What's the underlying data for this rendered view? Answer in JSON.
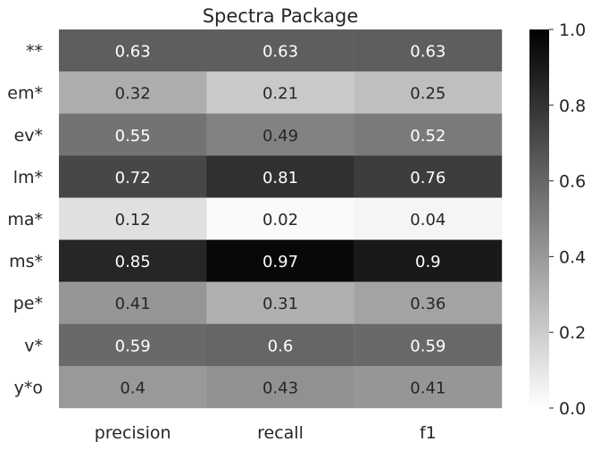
{
  "chart_data": {
    "type": "heatmap",
    "title": "Spectra Package",
    "xlabel": "",
    "ylabel": "",
    "columns": [
      "precision",
      "recall",
      "f1"
    ],
    "rows": [
      "**",
      "em*",
      "ev*",
      "lm*",
      "ma*",
      "ms*",
      "pe*",
      "v*",
      "y*o"
    ],
    "values": [
      [
        0.63,
        0.63,
        0.63
      ],
      [
        0.32,
        0.21,
        0.25
      ],
      [
        0.55,
        0.49,
        0.52
      ],
      [
        0.72,
        0.81,
        0.76
      ],
      [
        0.12,
        0.02,
        0.04
      ],
      [
        0.85,
        0.97,
        0.9
      ],
      [
        0.41,
        0.31,
        0.36
      ],
      [
        0.59,
        0.6,
        0.59
      ],
      [
        0.4,
        0.43,
        0.41
      ]
    ],
    "value_labels": [
      [
        "0.63",
        "0.63",
        "0.63"
      ],
      [
        "0.32",
        "0.21",
        "0.25"
      ],
      [
        "0.55",
        "0.49",
        "0.52"
      ],
      [
        "0.72",
        "0.81",
        "0.76"
      ],
      [
        "0.12",
        "0.02",
        "0.04"
      ],
      [
        "0.85",
        "0.97",
        "0.9"
      ],
      [
        "0.41",
        "0.31",
        "0.36"
      ],
      [
        "0.59",
        "0.6",
        "0.59"
      ],
      [
        "0.4",
        "0.43",
        "0.41"
      ]
    ],
    "colorbar": {
      "min": 0,
      "max": 1,
      "ticks": [
        "0.0",
        "0.2",
        "0.4",
        "0.6",
        "0.8",
        "1.0"
      ],
      "colormap": "white-to-black",
      "low_color": "#ffffff",
      "high_color": "#000000"
    },
    "grid": false
  }
}
